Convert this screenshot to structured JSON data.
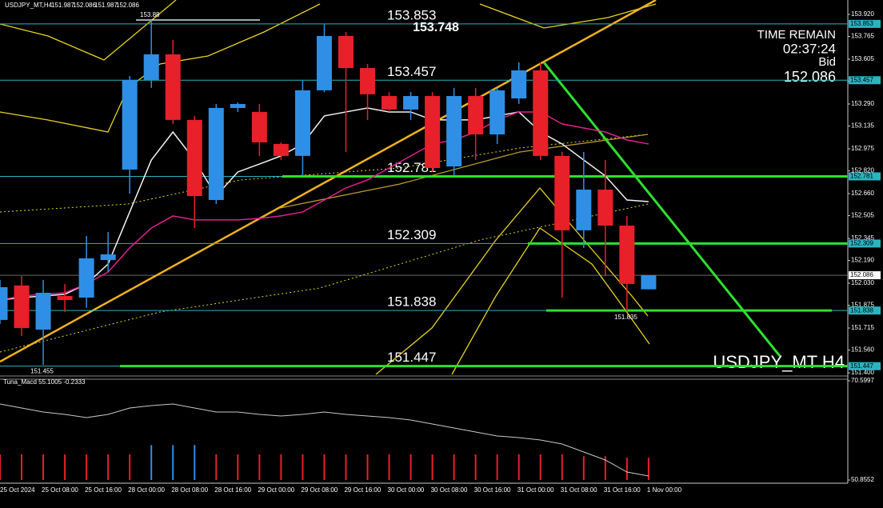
{
  "header": {
    "symbol": "USDJPY_MT,H4",
    "ohlc": [
      151.987,
      152.086,
      151.987,
      152.086
    ]
  },
  "info": {
    "time_remain_label": "TIME REMAIN",
    "time_remain": "02:37:24",
    "bid_label": "Bid",
    "bid": 152.086
  },
  "watermark": "USDJPY_MT H4",
  "chart_data": {
    "type": "candlestick",
    "categories": [
      "25 Oct 2024",
      null,
      "25 Oct 08:00",
      null,
      "25 Oct 16:00",
      null,
      "28 Oct 00:00",
      null,
      "28 Oct 08:00",
      null,
      "28 Oct 16:00",
      null,
      "29 Oct 00:00",
      null,
      "29 Oct 08:00",
      null,
      "29 Oct 16:00",
      null,
      "30 Oct 00:00",
      null,
      "30 Oct 08:00",
      null,
      "30 Oct 16:00",
      null,
      "31 Oct 00:00",
      null,
      "31 Oct 08:00",
      null,
      "31 Oct 16:00",
      null,
      "1 Nov 00:00"
    ],
    "open": [
      151.772,
      152.014,
      151.704,
      151.94,
      151.929,
      152.193,
      152.829,
      153.459,
      153.639,
      153.178,
      152.615,
      153.262,
      153.234,
      153.009,
      152.925,
      153.386,
      153.768,
      153.543,
      153.346,
      153.251,
      153.346,
      152.851,
      153.346,
      153.076,
      153.329,
      153.526,
      152.925,
      152.402,
      152.688,
      152.435,
      151.987
    ],
    "high": [
      152.053,
      152.081,
      152.053,
      152.025,
      152.362,
      152.39,
      153.487,
      153.88,
      153.74,
      153.206,
      153.29,
      153.301,
      153.29,
      153.02,
      153.459,
      153.853,
      153.796,
      153.571,
      153.374,
      153.374,
      153.374,
      153.403,
      153.403,
      153.403,
      153.583,
      153.583,
      152.953,
      152.953,
      152.896,
      152.503,
      152.086
    ],
    "low": [
      151.744,
      151.659,
      151.455,
      151.828,
      151.856,
      152.109,
      152.66,
      153.403,
      153.15,
      152.418,
      152.587,
      153.234,
      152.925,
      152.896,
      152.784,
      153.374,
      152.953,
      153.178,
      153.234,
      153.178,
      152.812,
      152.784,
      152.896,
      153.009,
      153.29,
      152.896,
      151.929,
      152.278,
      152.081,
      151.835,
      151.987
    ],
    "close": [
      152.002,
      151.715,
      151.963,
      151.912,
      152.205,
      152.233,
      153.459,
      153.639,
      153.178,
      152.643,
      153.262,
      153.29,
      153.02,
      152.925,
      153.386,
      153.768,
      153.543,
      153.358,
      153.251,
      153.346,
      152.84,
      153.346,
      153.076,
      153.386,
      153.526,
      152.925,
      152.402,
      152.688,
      152.435,
      152.025,
      152.086
    ],
    "up_color": "#2f8fe6",
    "down_color": "#e8202a",
    "ylim": [
      151.389,
      154.021
    ],
    "yticks": [
      {
        "value": 153.92,
        "label": "153.920"
      },
      153.765,
      153.605,
      {
        "value": 153.45,
        "label": "153.450"
      },
      {
        "value": 153.29,
        "label": "153.290"
      },
      153.135,
      152.975,
      {
        "value": 152.82,
        "label": "152.820"
      },
      {
        "value": 152.66,
        "label": "152.660"
      },
      152.505,
      152.345,
      {
        "value": 152.19,
        "label": "152.190"
      },
      {
        "value": 152.03,
        "label": "152.030"
      },
      151.875,
      151.715,
      {
        "value": 151.56,
        "label": "151.560"
      },
      {
        "value": 151.4,
        "label": "151.400"
      }
    ],
    "levels": [
      153.853,
      153.457,
      152.781,
      152.309,
      151.838,
      151.447
    ],
    "level_color": "#2ab4c0",
    "current_price": 152.086,
    "annotations": [
      153.748,
      153.88,
      151.455,
      151.835
    ],
    "lines": [
      {
        "color": "#f2f2f2",
        "values": [
          151.912,
          151.929,
          151.94,
          151.952,
          152.025,
          152.165,
          152.531,
          152.896,
          153.093,
          152.896,
          152.643,
          152.812,
          152.868,
          152.925,
          153.009,
          153.206,
          153.234,
          153.262,
          153.234,
          153.234,
          153.178,
          153.178,
          153.178,
          153.206,
          153.234,
          153.093,
          153.009,
          152.896,
          152.784,
          152.615,
          152.604
        ]
      },
      {
        "color": "#e0208f",
        "values": [
          151.912,
          151.94,
          151.952,
          151.963,
          152.025,
          152.109,
          152.278,
          152.418,
          152.503,
          152.475,
          152.475,
          152.475,
          152.486,
          152.503,
          152.531,
          152.615,
          152.7,
          152.756,
          152.84,
          152.925,
          153.009,
          153.037,
          153.093,
          153.178,
          153.234,
          153.234,
          153.15,
          153.121,
          153.093,
          153.037,
          153.009
        ]
      }
    ]
  },
  "indicator": {
    "title": "Tuna_Macd 55.1005 -0.2333",
    "ylim": [
      50.8552,
      70.5997
    ],
    "yticks": [
      70.5997,
      50.8552
    ],
    "line_color": "#c8c8c8",
    "line": [
      65.982,
      65.186,
      64.39,
      63.912,
      63.275,
      63.912,
      65.186,
      65.664,
      65.982,
      65.186,
      64.39,
      64.39,
      63.912,
      63.594,
      63.912,
      64.39,
      63.912,
      63.594,
      63.275,
      62.797,
      61.999,
      61.205,
      60.409,
      59.613,
      59.294,
      58.817,
      58.021,
      56.428,
      54.836,
      52.447,
      51.651
    ],
    "hist": [
      55.95,
      55.95,
      55.95,
      55.95,
      55.95,
      55.95,
      55.95,
      57.8,
      57.8,
      57.8,
      55.95,
      55.95,
      55.95,
      55.95,
      55.95,
      55.95,
      55.95,
      55.95,
      55.95,
      55.95,
      55.95,
      55.95,
      55.95,
      55.95,
      55.95,
      55.95,
      55.95,
      55.6,
      55.6,
      55.3,
      55.3
    ],
    "hist_colors": [
      "#e8202a",
      "#e8202a",
      "#e8202a",
      "#e8202a",
      "#e8202a",
      "#e8202a",
      "#e8202a",
      "#2f8fe6",
      "#2f8fe6",
      "#2f8fe6",
      "#e8202a",
      "#e8202a",
      "#e8202a",
      "#e8202a",
      "#e8202a",
      "#e8202a",
      "#e8202a",
      "#e8202a",
      "#e8202a",
      "#e8202a",
      "#e8202a",
      "#e8202a",
      "#e8202a",
      "#e8202a",
      "#e8202a",
      "#e8202a",
      "#e8202a",
      "#e8202a",
      "#e8202a",
      "#e8202a",
      "#e8202a"
    ]
  }
}
